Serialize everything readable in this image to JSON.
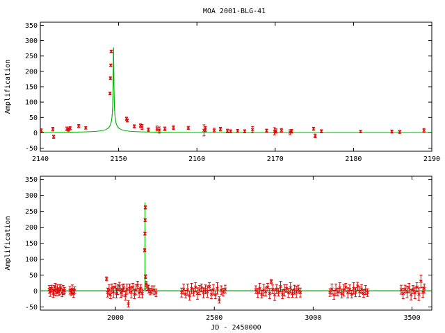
{
  "title": "MOA 2001-BLG-41",
  "chart_data": [
    {
      "type": "scatter",
      "ylabel": "Amplification",
      "xlabel": "",
      "xlim": [
        2140,
        2190
      ],
      "ylim": [
        -60,
        360
      ],
      "xticks": [
        2140,
        2150,
        2160,
        2170,
        2180,
        2190
      ],
      "yticks": [
        -50,
        0,
        50,
        100,
        150,
        200,
        250,
        300,
        350
      ],
      "grid": false,
      "series": [
        {
          "role": "model",
          "color": "#00b000",
          "model": {
            "t0": 2149.35,
            "u0": 0.0036,
            "tE": 10.5,
            "peak_y": 360
          }
        },
        {
          "role": "data",
          "color": "#e00000",
          "points": [
            {
              "x": 2140.1,
              "y": 8,
              "err": 5
            },
            {
              "x": 2141.6,
              "y": 12,
              "err": 6
            },
            {
              "x": 2141.7,
              "y": -13,
              "err": 5
            },
            {
              "x": 2143.4,
              "y": 13,
              "err": 6
            },
            {
              "x": 2143.6,
              "y": 10,
              "err": 5
            },
            {
              "x": 2143.8,
              "y": 15,
              "err": 5
            },
            {
              "x": 2144.9,
              "y": 22,
              "err": 5
            },
            {
              "x": 2145.8,
              "y": 16,
              "err": 4
            },
            {
              "x": 2148.9,
              "y": 128,
              "err": 4
            },
            {
              "x": 2148.95,
              "y": 178,
              "err": 4
            },
            {
              "x": 2149.0,
              "y": 220,
              "err": 4
            },
            {
              "x": 2149.05,
              "y": 265,
              "err": 4
            },
            {
              "x": 2151.0,
              "y": 46,
              "err": 5
            },
            {
              "x": 2151.1,
              "y": 40,
              "err": 5
            },
            {
              "x": 2152.0,
              "y": 21,
              "err": 5
            },
            {
              "x": 2152.8,
              "y": 23,
              "err": 6
            },
            {
              "x": 2153.0,
              "y": 19,
              "err": 8
            },
            {
              "x": 2153.8,
              "y": 10,
              "err": 6
            },
            {
              "x": 2154.9,
              "y": 14,
              "err": 8
            },
            {
              "x": 2155.2,
              "y": 9,
              "err": 10
            },
            {
              "x": 2155.9,
              "y": 13,
              "err": 6
            },
            {
              "x": 2157.0,
              "y": 17,
              "err": 6
            },
            {
              "x": 2158.9,
              "y": 16,
              "err": 5
            },
            {
              "x": 2160.9,
              "y": 8,
              "err": 18
            },
            {
              "x": 2161.1,
              "y": 12,
              "err": 8
            },
            {
              "x": 2162.2,
              "y": 8,
              "err": 7
            },
            {
              "x": 2163.0,
              "y": 12,
              "err": 6
            },
            {
              "x": 2163.9,
              "y": 6,
              "err": 6
            },
            {
              "x": 2164.3,
              "y": 5,
              "err": 5
            },
            {
              "x": 2165.2,
              "y": 6,
              "err": 5
            },
            {
              "x": 2166.1,
              "y": 5,
              "err": 5
            },
            {
              "x": 2167.1,
              "y": 10,
              "err": 10
            },
            {
              "x": 2168.9,
              "y": 7,
              "err": 5
            },
            {
              "x": 2169.9,
              "y": 5,
              "err": 12
            },
            {
              "x": 2170.1,
              "y": 6,
              "err": 7
            },
            {
              "x": 2170.8,
              "y": 8,
              "err": 6
            },
            {
              "x": 2171.9,
              "y": 2,
              "err": 8
            },
            {
              "x": 2172.1,
              "y": 5,
              "err": 6
            },
            {
              "x": 2174.9,
              "y": 13,
              "err": 5
            },
            {
              "x": 2175.1,
              "y": -10,
              "err": 6
            },
            {
              "x": 2175.9,
              "y": 5,
              "err": 5
            },
            {
              "x": 2180.9,
              "y": 4,
              "err": 4
            },
            {
              "x": 2184.9,
              "y": 4,
              "err": 5
            },
            {
              "x": 2185.9,
              "y": 3,
              "err": 5
            },
            {
              "x": 2189.0,
              "y": 8,
              "err": 6
            }
          ]
        }
      ]
    },
    {
      "type": "scatter",
      "ylabel": "Amplification",
      "xlabel": "JD - 2450000",
      "xlim": [
        1620,
        3600
      ],
      "ylim": [
        -60,
        360
      ],
      "xticks": [
        2000,
        2500,
        3000,
        3500
      ],
      "yticks": [
        -50,
        0,
        50,
        100,
        150,
        200,
        250,
        300,
        350
      ],
      "grid": false,
      "series": [
        {
          "role": "model",
          "color": "#00b000",
          "model": {
            "t0": 2149.35,
            "u0": 0.0036,
            "tE": 10.5,
            "peak_y": 360
          }
        },
        {
          "role": "data",
          "color": "#e00000",
          "points": [
            {
              "x": 1665,
              "y": 5,
              "err": 12
            },
            {
              "x": 1670,
              "y": -3,
              "err": 14
            },
            {
              "x": 1678,
              "y": 8,
              "err": 10
            },
            {
              "x": 1685,
              "y": -8,
              "err": 12
            },
            {
              "x": 1690,
              "y": 2,
              "err": 15
            },
            {
              "x": 1695,
              "y": 12,
              "err": 12
            },
            {
              "x": 1700,
              "y": -5,
              "err": 10
            },
            {
              "x": 1706,
              "y": 6,
              "err": 14
            },
            {
              "x": 1712,
              "y": -2,
              "err": 12
            },
            {
              "x": 1718,
              "y": 4,
              "err": 16
            },
            {
              "x": 1724,
              "y": 10,
              "err": 10
            },
            {
              "x": 1730,
              "y": -6,
              "err": 12
            },
            {
              "x": 1736,
              "y": 3,
              "err": 14
            },
            {
              "x": 1742,
              "y": 1,
              "err": 10
            },
            {
              "x": 1770,
              "y": 2,
              "err": 12
            },
            {
              "x": 1776,
              "y": -4,
              "err": 10
            },
            {
              "x": 1782,
              "y": 5,
              "err": 14
            },
            {
              "x": 1788,
              "y": -8,
              "err": 12
            },
            {
              "x": 1794,
              "y": 3,
              "err": 10
            },
            {
              "x": 1955,
              "y": 38,
              "err": 6
            },
            {
              "x": 1960,
              "y": -5,
              "err": 14
            },
            {
              "x": 1968,
              "y": 4,
              "err": 16
            },
            {
              "x": 1975,
              "y": -12,
              "err": 12
            },
            {
              "x": 1982,
              "y": 8,
              "err": 14
            },
            {
              "x": 1990,
              "y": -3,
              "err": 18
            },
            {
              "x": 1998,
              "y": 12,
              "err": 12
            },
            {
              "x": 2005,
              "y": -8,
              "err": 14
            },
            {
              "x": 2012,
              "y": 5,
              "err": 16
            },
            {
              "x": 2020,
              "y": 15,
              "err": 12
            },
            {
              "x": 2028,
              "y": -6,
              "err": 14
            },
            {
              "x": 2035,
              "y": 2,
              "err": 18
            },
            {
              "x": 2042,
              "y": 10,
              "err": 12
            },
            {
              "x": 2050,
              "y": -15,
              "err": 14
            },
            {
              "x": 2058,
              "y": 6,
              "err": 16
            },
            {
              "x": 2065,
              "y": -40,
              "err": 10
            },
            {
              "x": 2072,
              "y": 8,
              "err": 14
            },
            {
              "x": 2080,
              "y": -4,
              "err": 18
            },
            {
              "x": 2088,
              "y": 12,
              "err": 12
            },
            {
              "x": 2096,
              "y": -10,
              "err": 14
            },
            {
              "x": 2104,
              "y": 4,
              "err": 16
            },
            {
              "x": 2112,
              "y": 18,
              "err": 12
            },
            {
              "x": 2120,
              "y": -6,
              "err": 14
            },
            {
              "x": 2128,
              "y": 8,
              "err": 12
            },
            {
              "x": 2135,
              "y": -8,
              "err": 14
            },
            {
              "x": 2148,
              "y": 128,
              "err": 5
            },
            {
              "x": 2149,
              "y": 180,
              "err": 5
            },
            {
              "x": 2150,
              "y": 222,
              "err": 5
            },
            {
              "x": 2151,
              "y": 262,
              "err": 5
            },
            {
              "x": 2152,
              "y": 45,
              "err": 6
            },
            {
              "x": 2155,
              "y": 22,
              "err": 8
            },
            {
              "x": 2160,
              "y": 12,
              "err": 10
            },
            {
              "x": 2168,
              "y": 6,
              "err": 12
            },
            {
              "x": 2176,
              "y": -2,
              "err": 10
            },
            {
              "x": 2185,
              "y": 4,
              "err": 12
            },
            {
              "x": 2195,
              "y": 2,
              "err": 14
            },
            {
              "x": 2205,
              "y": -6,
              "err": 12
            },
            {
              "x": 2335,
              "y": -5,
              "err": 14
            },
            {
              "x": 2345,
              "y": 6,
              "err": 16
            },
            {
              "x": 2355,
              "y": -10,
              "err": 12
            },
            {
              "x": 2365,
              "y": 4,
              "err": 18
            },
            {
              "x": 2375,
              "y": -15,
              "err": 14
            },
            {
              "x": 2385,
              "y": 8,
              "err": 16
            },
            {
              "x": 2395,
              "y": -4,
              "err": 12
            },
            {
              "x": 2405,
              "y": 12,
              "err": 14
            },
            {
              "x": 2415,
              "y": -8,
              "err": 18
            },
            {
              "x": 2425,
              "y": 3,
              "err": 14
            },
            {
              "x": 2435,
              "y": 10,
              "err": 12
            },
            {
              "x": 2445,
              "y": -6,
              "err": 16
            },
            {
              "x": 2455,
              "y": 5,
              "err": 14
            },
            {
              "x": 2465,
              "y": -2,
              "err": 18
            },
            {
              "x": 2475,
              "y": 14,
              "err": 12
            },
            {
              "x": 2485,
              "y": -10,
              "err": 14
            },
            {
              "x": 2495,
              "y": 4,
              "err": 16
            },
            {
              "x": 2505,
              "y": -12,
              "err": 12
            },
            {
              "x": 2515,
              "y": 8,
              "err": 18
            },
            {
              "x": 2525,
              "y": -28,
              "err": 10
            },
            {
              "x": 2535,
              "y": 2,
              "err": 14
            },
            {
              "x": 2545,
              "y": -4,
              "err": 12
            },
            {
              "x": 2555,
              "y": 6,
              "err": 12
            },
            {
              "x": 2710,
              "y": 4,
              "err": 12
            },
            {
              "x": 2720,
              "y": -6,
              "err": 14
            },
            {
              "x": 2730,
              "y": 8,
              "err": 16
            },
            {
              "x": 2740,
              "y": -10,
              "err": 12
            },
            {
              "x": 2750,
              "y": 3,
              "err": 18
            },
            {
              "x": 2760,
              "y": -2,
              "err": 14
            },
            {
              "x": 2770,
              "y": 12,
              "err": 12
            },
            {
              "x": 2780,
              "y": -8,
              "err": 16
            },
            {
              "x": 2788,
              "y": 30,
              "err": 6
            },
            {
              "x": 2795,
              "y": 5,
              "err": 14
            },
            {
              "x": 2805,
              "y": -12,
              "err": 18
            },
            {
              "x": 2815,
              "y": 6,
              "err": 14
            },
            {
              "x": 2825,
              "y": -4,
              "err": 12
            },
            {
              "x": 2835,
              "y": 14,
              "err": 16
            },
            {
              "x": 2845,
              "y": -10,
              "err": 14
            },
            {
              "x": 2855,
              "y": 2,
              "err": 18
            },
            {
              "x": 2865,
              "y": 8,
              "err": 12
            },
            {
              "x": 2875,
              "y": -6,
              "err": 14
            },
            {
              "x": 2885,
              "y": 10,
              "err": 16
            },
            {
              "x": 2895,
              "y": -8,
              "err": 12
            },
            {
              "x": 2905,
              "y": 4,
              "err": 14
            },
            {
              "x": 2915,
              "y": -3,
              "err": 18
            },
            {
              "x": 2925,
              "y": 6,
              "err": 12
            },
            {
              "x": 2935,
              "y": -5,
              "err": 14
            },
            {
              "x": 3085,
              "y": -5,
              "err": 12
            },
            {
              "x": 3095,
              "y": 6,
              "err": 16
            },
            {
              "x": 3105,
              "y": -12,
              "err": 14
            },
            {
              "x": 3115,
              "y": 4,
              "err": 18
            },
            {
              "x": 3125,
              "y": -3,
              "err": 12
            },
            {
              "x": 3135,
              "y": 10,
              "err": 16
            },
            {
              "x": 3145,
              "y": -8,
              "err": 14
            },
            {
              "x": 3155,
              "y": 2,
              "err": 18
            },
            {
              "x": 3165,
              "y": 12,
              "err": 12
            },
            {
              "x": 3175,
              "y": -6,
              "err": 16
            },
            {
              "x": 3185,
              "y": 5,
              "err": 14
            },
            {
              "x": 3195,
              "y": -10,
              "err": 12
            },
            {
              "x": 3205,
              "y": 8,
              "err": 18
            },
            {
              "x": 3215,
              "y": -4,
              "err": 14
            },
            {
              "x": 3225,
              "y": 15,
              "err": 12
            },
            {
              "x": 3235,
              "y": -2,
              "err": 16
            },
            {
              "x": 3245,
              "y": 6,
              "err": 14
            },
            {
              "x": 3255,
              "y": -8,
              "err": 12
            },
            {
              "x": 3265,
              "y": 3,
              "err": 14
            },
            {
              "x": 3275,
              "y": -5,
              "err": 12
            },
            {
              "x": 3445,
              "y": 4,
              "err": 14
            },
            {
              "x": 3455,
              "y": -8,
              "err": 16
            },
            {
              "x": 3465,
              "y": 6,
              "err": 12
            },
            {
              "x": 3475,
              "y": -3,
              "err": 18
            },
            {
              "x": 3485,
              "y": 10,
              "err": 14
            },
            {
              "x": 3495,
              "y": -12,
              "err": 16
            },
            {
              "x": 3505,
              "y": 5,
              "err": 12
            },
            {
              "x": 3515,
              "y": -6,
              "err": 18
            },
            {
              "x": 3525,
              "y": 12,
              "err": 14
            },
            {
              "x": 3535,
              "y": -10,
              "err": 20
            },
            {
              "x": 3545,
              "y": 30,
              "err": 20
            },
            {
              "x": 3555,
              "y": -4,
              "err": 16
            },
            {
              "x": 3562,
              "y": 8,
              "err": 14
            }
          ]
        }
      ]
    }
  ]
}
